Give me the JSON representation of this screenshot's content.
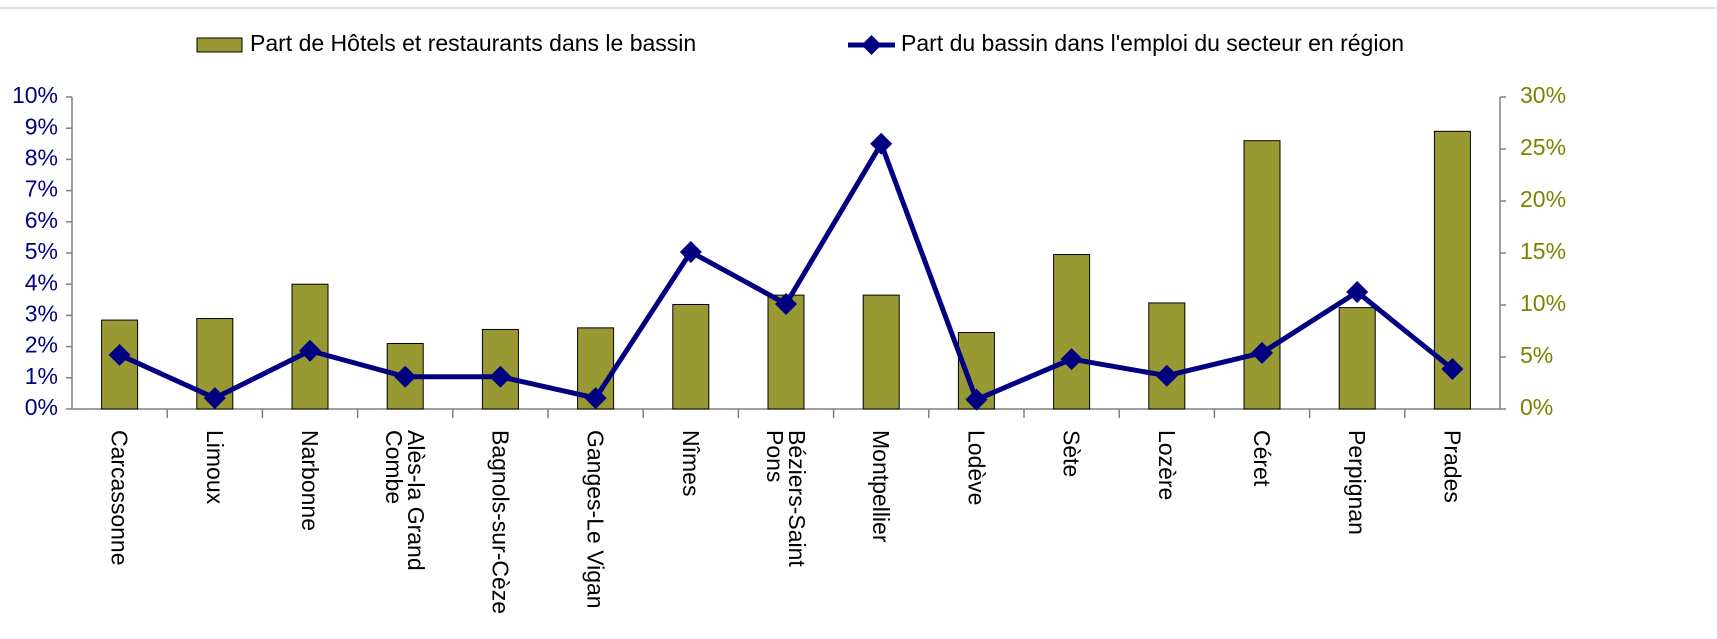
{
  "chart_data": {
    "type": "bar+line",
    "categories": [
      "Carcassonne",
      "Limoux",
      "Narbonne",
      "Alès-la Grand Combe",
      "Bagnols-sur-Cèze",
      "Ganges-Le Vigan",
      "Nîmes",
      "Béziers-Saint Pons",
      "Montpellier",
      "Lodève",
      "Sète",
      "Lozère",
      "Céret",
      "Perpignan",
      "Prades"
    ],
    "series": [
      {
        "name": "Part de Hôtels et restaurants dans le bassin",
        "type": "bar",
        "color": "#999933",
        "values": [
          2.85,
          2.9,
          4.0,
          2.1,
          2.55,
          2.6,
          3.35,
          3.65,
          3.65,
          2.45,
          4.95,
          3.4,
          8.6,
          3.25,
          8.9
        ]
      },
      {
        "name": "Part du bassin dans l'emploi du secteur en région",
        "type": "line",
        "axis": "y2",
        "color": "#000080",
        "values": [
          5.2,
          1.05,
          5.6,
          3.1,
          3.1,
          1.05,
          15.1,
          10.1,
          25.5,
          0.9,
          4.8,
          3.2,
          5.4,
          11.25,
          3.85
        ]
      }
    ],
    "ylim": [
      0,
      10
    ],
    "yticks": [
      {
        "value": 0,
        "label": "0%"
      },
      {
        "value": 1,
        "label": "1%"
      },
      {
        "value": 2,
        "label": "2%"
      },
      {
        "value": 3,
        "label": "3%"
      },
      {
        "value": 4,
        "label": "4%"
      },
      {
        "value": 5,
        "label": "5%"
      },
      {
        "value": 6,
        "label": "6%"
      },
      {
        "value": 7,
        "label": "7%"
      },
      {
        "value": 8,
        "label": "8%"
      },
      {
        "value": 9,
        "label": "9%"
      },
      {
        "value": 10,
        "label": "10%"
      }
    ],
    "y2lim": [
      0,
      30
    ],
    "y2ticks": [
      {
        "value": 0,
        "label": "0%"
      },
      {
        "value": 5,
        "label": "5%"
      },
      {
        "value": 10,
        "label": "10%"
      },
      {
        "value": 15,
        "label": "15%"
      },
      {
        "value": 20,
        "label": "20%"
      },
      {
        "value": 25,
        "label": "25%"
      },
      {
        "value": 30,
        "label": "30%"
      }
    ],
    "ytick_color": "#000080",
    "y2tick_color": "#808000",
    "legend": "top"
  }
}
